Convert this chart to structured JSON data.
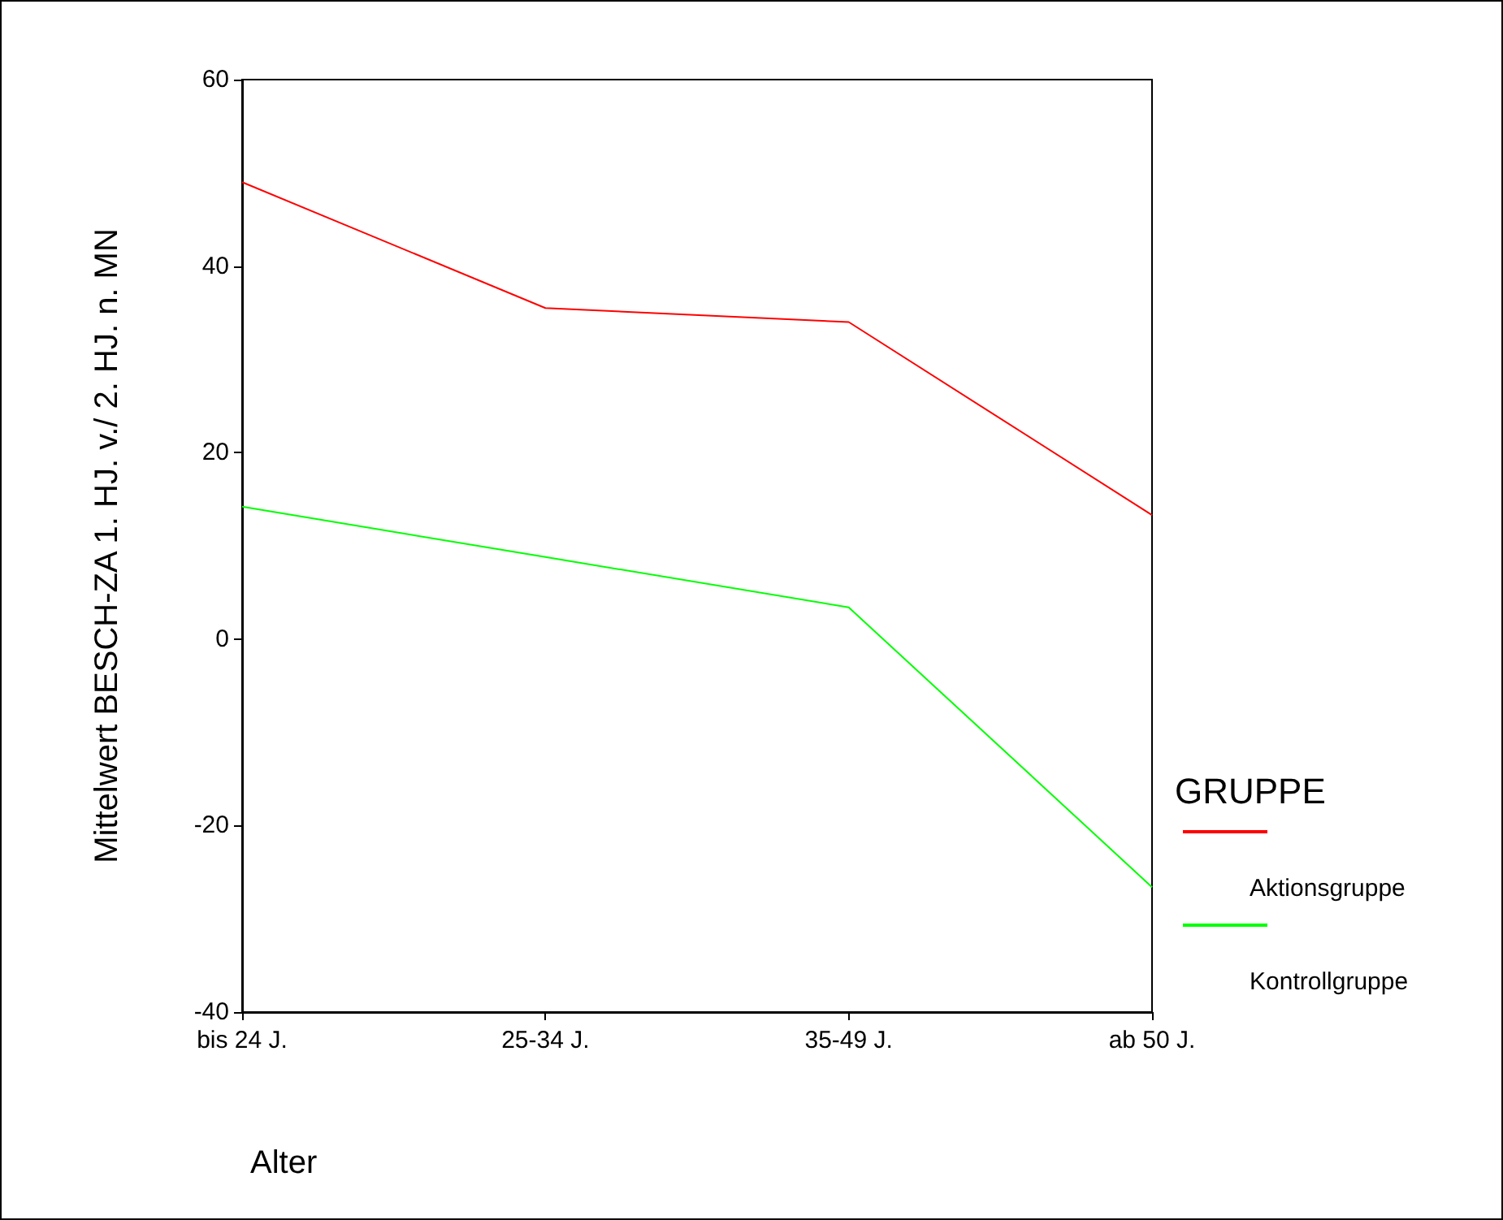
{
  "chart_data": {
    "type": "line",
    "xlabel": "Alter",
    "ylabel": "Mittelwert BESCH-ZA 1. HJ. v./ 2. HJ. n. MN",
    "legend_title": "GRUPPE",
    "categories": [
      "bis 24 J.",
      "25-34 J.",
      "35-49 J.",
      "ab 50 J."
    ],
    "series": [
      {
        "name": "Aktionsgruppe",
        "color": "#ff0000",
        "values": [
          49,
          35.5,
          34,
          13.3
        ]
      },
      {
        "name": "Kontrollgruppe",
        "color": "#00ff00",
        "values": [
          14.2,
          8.8,
          3.4,
          -26.6
        ]
      }
    ],
    "ylim": [
      -40,
      60
    ],
    "yticks": [
      -40,
      -20,
      0,
      20,
      40,
      60
    ],
    "grid": false,
    "legend": "right",
    "marker": "none",
    "line_style": "solid"
  }
}
